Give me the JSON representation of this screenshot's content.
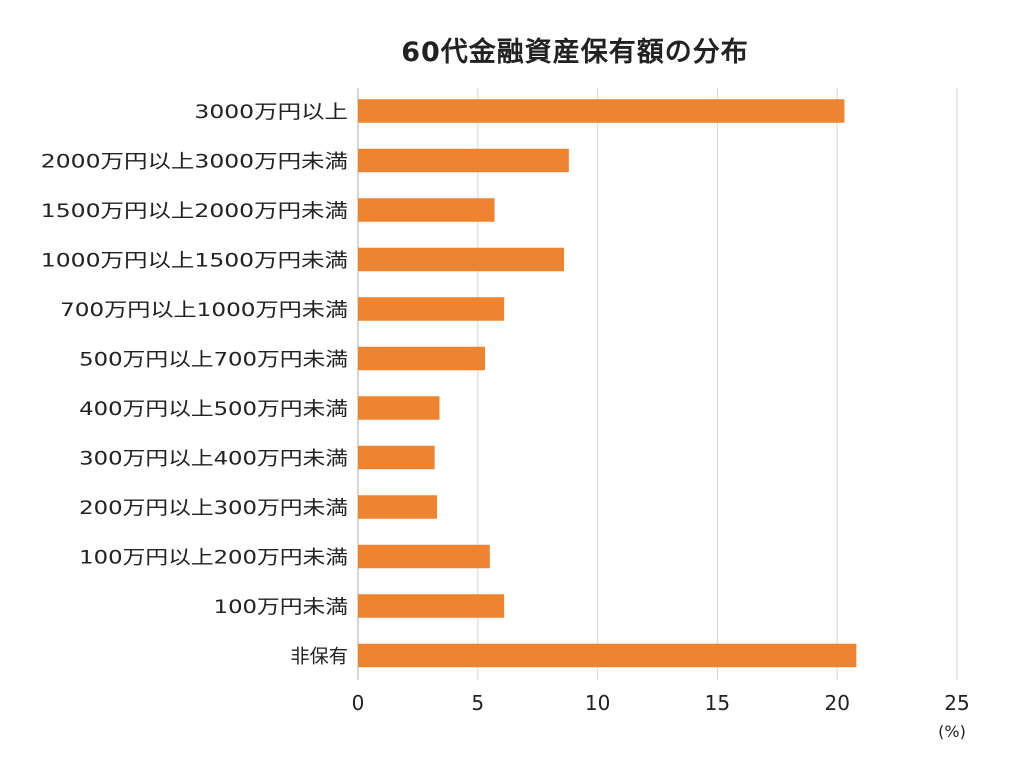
{
  "chart_data": {
    "type": "bar",
    "orientation": "horizontal",
    "title": "60代金融資産保有額の分布",
    "categories": [
      "3000万円以上",
      "2000万円以上3000万円未満",
      "1500万円以上2000万円未満",
      "1000万円以上1500万円未満",
      "700万円以上1000万円未満",
      "500万円以上700万円未満",
      "400万円以上500万円未満",
      "300万円以上400万円未満",
      "200万円以上300万円未満",
      "100万円以上200万円未満",
      "100万円未満",
      "非保有"
    ],
    "values": [
      20.3,
      8.8,
      5.7,
      8.6,
      6.1,
      5.3,
      3.4,
      3.2,
      3.3,
      5.5,
      6.1,
      20.8
    ],
    "xlim": [
      0,
      25
    ],
    "xticks": [
      0,
      5,
      10,
      15,
      20,
      25
    ],
    "xlabel": "",
    "unit": "(%)",
    "grid": true,
    "bar_color": "#EE8330",
    "grid_color": "#DADADA"
  }
}
